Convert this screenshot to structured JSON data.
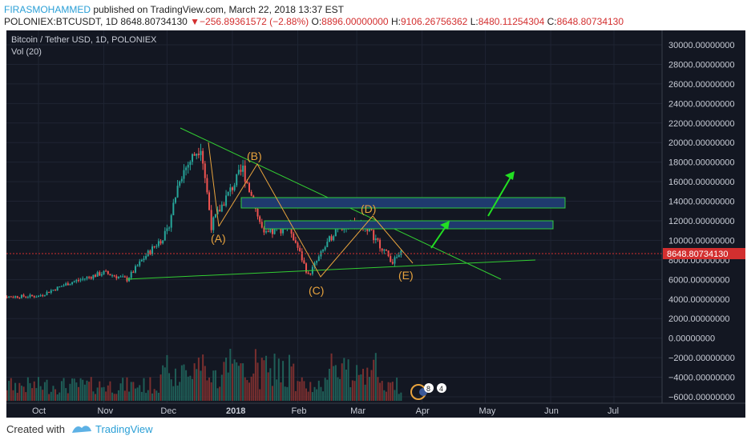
{
  "header": {
    "author": "FIRASMOHAMMED",
    "published_text": " published on TradingView.com, March 22, 2018 13:37 EST",
    "symbol_line": "POLONIEX:BTCUSDT, 1D  8648.80734130",
    "change_arrow": "▼",
    "change_text": "−256.89361572 (−2.88%)",
    "o_label": "O:",
    "o_value": "8896.00000000",
    "h_label": "H:",
    "h_value": "9106.26756362",
    "l_label": "L:",
    "l_value": "8480.11254304",
    "c_label": "C:",
    "c_value": "8648.80734130"
  },
  "chart": {
    "title": "Bitcoin / Tether USD, 1D, POLONIEX",
    "volume_label": "Vol (20)",
    "last_price_label": "8648.80734130",
    "y_ticks": [
      "30000.00000000",
      "28000.00000000",
      "26000.00000000",
      "24000.00000000",
      "22000.00000000",
      "20000.00000000",
      "18000.00000000",
      "16000.00000000",
      "14000.00000000",
      "12000.00000000",
      "10000.00000000",
      "8000.00000000",
      "6000.00000000",
      "4000.00000000",
      "2000.00000000",
      "0.00000000",
      "−2000.00000000",
      "−4000.00000000",
      "−6000.00000000"
    ],
    "x_ticks": [
      "Oct",
      "Nov",
      "Dec",
      "2018",
      "Feb",
      "Mar",
      "Apr",
      "May",
      "Jun",
      "Jul"
    ],
    "wave_labels": [
      "(A)",
      "(B)",
      "(C)",
      "(D)",
      "(E)"
    ],
    "event_badges": [
      "8",
      "4"
    ]
  },
  "chart_data": {
    "type": "candlestick",
    "title": "Bitcoin / Tether USD, 1D, POLONIEX",
    "x_axis": [
      "Oct",
      "Nov",
      "Dec",
      "2018",
      "Feb",
      "Mar",
      "Apr",
      "May",
      "Jun",
      "Jul"
    ],
    "ylim": [
      -7000,
      31000
    ],
    "last_price": 8648.8073413,
    "price_path": [
      [
        "2017-10-01",
        4300
      ],
      [
        "2017-10-15",
        5600
      ],
      [
        "2017-11-01",
        6700
      ],
      [
        "2017-11-12",
        6000
      ],
      [
        "2017-11-20",
        8200
      ],
      [
        "2017-12-01",
        10800
      ],
      [
        "2017-12-07",
        16500
      ],
      [
        "2017-12-17",
        19800
      ],
      [
        "2017-12-22",
        11500
      ],
      [
        "2017-12-28",
        14000
      ],
      [
        "2018-01-06",
        17300
      ],
      [
        "2018-01-16",
        10500
      ],
      [
        "2018-01-28",
        11500
      ],
      [
        "2018-02-06",
        6400
      ],
      [
        "2018-02-20",
        11500
      ],
      [
        "2018-03-05",
        11600
      ],
      [
        "2018-03-18",
        7800
      ],
      [
        "2018-03-22",
        8650
      ]
    ],
    "elliott_waves": [
      {
        "label": "(A)",
        "price": 11500
      },
      {
        "label": "(B)",
        "price": 17300
      },
      {
        "label": "(C)",
        "price": 6400
      },
      {
        "label": "(D)",
        "price": 11700
      },
      {
        "label": "(E)",
        "price": 7800
      }
    ],
    "resistance_zones": [
      [
        13200,
        14200
      ],
      [
        11300,
        12000
      ]
    ],
    "grid": true
  }
}
